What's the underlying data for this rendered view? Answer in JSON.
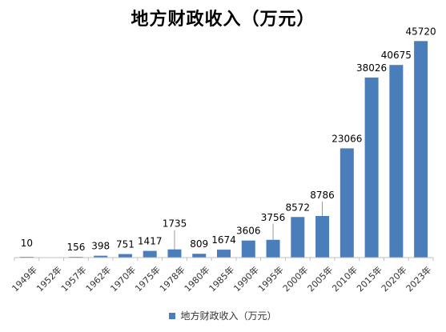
{
  "chart_data": {
    "type": "bar",
    "title": "地方财政收入（万元）",
    "categories": [
      "1949年",
      "1952年",
      "1957年",
      "1962年",
      "1970年",
      "1975年",
      "1978年",
      "1980年",
      "1985年",
      "1990年",
      "1995年",
      "2000年",
      "2005年",
      "2010年",
      "2015年",
      "2020年",
      "2023年"
    ],
    "series": [
      {
        "name": "地方财政收入（万元）",
        "values": [
          10,
          null,
          156,
          398,
          751,
          1417,
          1735,
          809,
          1674,
          3606,
          3756,
          8572,
          8786,
          23066,
          38026,
          40675,
          45720
        ]
      }
    ],
    "data_labels": [
      "10",
      "",
      "156",
      "398",
      "751",
      "1417",
      "1735",
      "809",
      "1674",
      "3606",
      "3756",
      "8572",
      "8786",
      "23066",
      "38026",
      "40675",
      "45720"
    ],
    "xlabel": "",
    "ylabel": "",
    "ylim": [
      0,
      50000
    ],
    "grid": false,
    "legend_position": "bottom",
    "bar_color": "#4a7ebb"
  }
}
